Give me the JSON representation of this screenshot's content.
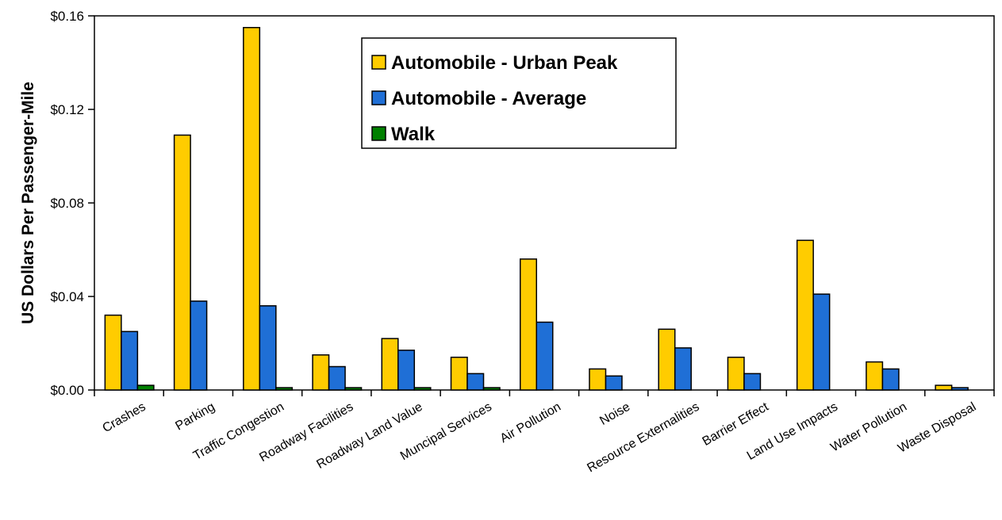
{
  "chart_data": {
    "type": "bar",
    "ylabel": "US Dollars Per Passenger-Mile",
    "ylim": [
      0,
      0.16
    ],
    "yticks": [
      {
        "value": 0,
        "label": "$0.00"
      },
      {
        "value": 0.04,
        "label": "$0.04"
      },
      {
        "value": 0.08,
        "label": "$0.08"
      },
      {
        "value": 0.12,
        "label": "$0.12"
      },
      {
        "value": 0.16,
        "label": "$0.16"
      }
    ],
    "grid": false,
    "legend_position": "top-center",
    "categories": [
      "Crashes",
      "Parking",
      "Traffic Congestion",
      "Roadway Facilities",
      "Roadway Land Value",
      "Muncipal Services",
      "Air Pollution",
      "Noise",
      "Resource Externalities",
      "Barrier Effect",
      "Land Use Impacts",
      "Water Pollution",
      "Waste Disposal"
    ],
    "series": [
      {
        "name": "Automobile - Urban Peak",
        "color": "#FFCC00",
        "values": [
          0.032,
          0.109,
          0.155,
          0.015,
          0.022,
          0.014,
          0.056,
          0.009,
          0.026,
          0.014,
          0.064,
          0.012,
          0.002
        ]
      },
      {
        "name": "Automobile - Average",
        "color": "#1F6FD6",
        "values": [
          0.025,
          0.038,
          0.036,
          0.01,
          0.017,
          0.007,
          0.029,
          0.006,
          0.018,
          0.007,
          0.041,
          0.009,
          0.001
        ]
      },
      {
        "name": "Walk",
        "color": "#008000",
        "values": [
          0.002,
          0,
          0.001,
          0.001,
          0.001,
          0.001,
          0,
          0,
          0,
          0,
          0,
          0,
          0
        ]
      }
    ]
  }
}
